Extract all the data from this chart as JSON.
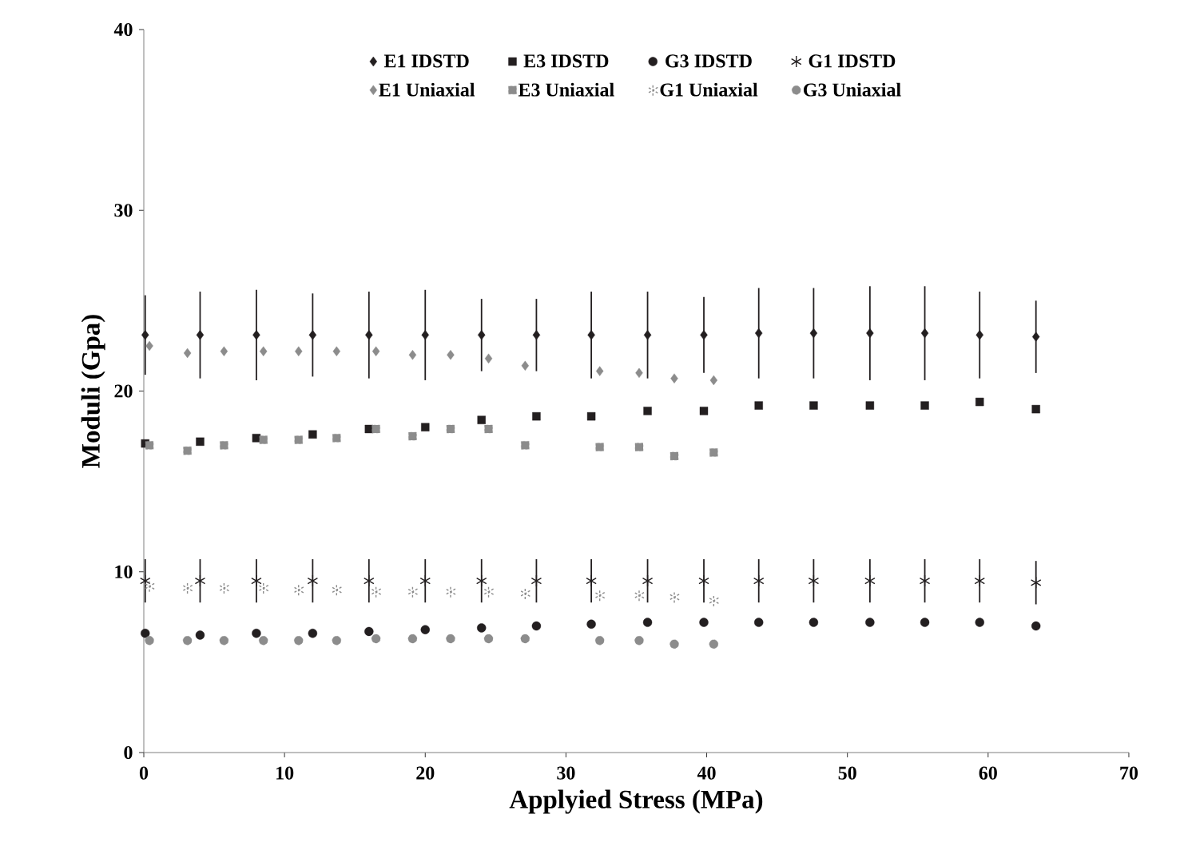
{
  "chart_data": {
    "type": "scatter",
    "xlabel": "Applyied Stress (MPa)",
    "ylabel": "Moduli (Gpa)",
    "xlim": [
      0,
      70
    ],
    "ylim": [
      0,
      40
    ],
    "xticks": [
      0,
      10,
      20,
      30,
      40,
      50,
      60,
      70
    ],
    "yticks": [
      0,
      10,
      20,
      30,
      40
    ],
    "grid": false,
    "legend": "top",
    "series": [
      {
        "name": "E1 IDSTD",
        "color": "#231f20",
        "marker": "diamond",
        "x": [
          0.1,
          4,
          8,
          12,
          16,
          20,
          24,
          27.9,
          31.8,
          35.8,
          39.8,
          43.7,
          47.6,
          51.6,
          55.5,
          59.4,
          63.4
        ],
        "values": [
          23.1,
          23.1,
          23.1,
          23.1,
          23.1,
          23.1,
          23.1,
          23.1,
          23.1,
          23.1,
          23.1,
          23.2,
          23.2,
          23.2,
          23.2,
          23.1,
          23.0
        ],
        "errors": [
          2.2,
          2.4,
          2.5,
          2.3,
          2.4,
          2.5,
          2.0,
          2.0,
          2.4,
          2.4,
          2.1,
          2.5,
          2.5,
          2.6,
          2.6,
          2.4,
          2.0
        ]
      },
      {
        "name": "E3 IDSTD",
        "color": "#231f20",
        "marker": "square",
        "x": [
          0.1,
          4,
          8,
          12,
          16,
          20,
          24,
          27.9,
          31.8,
          35.8,
          39.8,
          43.7,
          47.6,
          51.6,
          55.5,
          59.4,
          63.4
        ],
        "values": [
          17.1,
          17.2,
          17.4,
          17.6,
          17.9,
          18.0,
          18.4,
          18.6,
          18.6,
          18.9,
          18.9,
          19.2,
          19.2,
          19.2,
          19.2,
          19.4,
          19.0
        ]
      },
      {
        "name": "G3 IDSTD",
        "color": "#231f20",
        "marker": "circle",
        "x": [
          0.1,
          4,
          8,
          12,
          16,
          20,
          24,
          27.9,
          31.8,
          35.8,
          39.8,
          43.7,
          47.6,
          51.6,
          55.5,
          59.4,
          63.4
        ],
        "values": [
          6.6,
          6.5,
          6.6,
          6.6,
          6.7,
          6.8,
          6.9,
          7.0,
          7.1,
          7.2,
          7.2,
          7.2,
          7.2,
          7.2,
          7.2,
          7.2,
          7.0
        ]
      },
      {
        "name": "G1 IDSTD",
        "color": "#231f20",
        "marker": "cross",
        "x": [
          0.1,
          4,
          8,
          12,
          16,
          20,
          24,
          27.9,
          31.8,
          35.8,
          39.8,
          43.7,
          47.6,
          51.6,
          55.5,
          59.4,
          63.4
        ],
        "values": [
          9.5,
          9.5,
          9.5,
          9.5,
          9.5,
          9.5,
          9.5,
          9.5,
          9.5,
          9.5,
          9.5,
          9.5,
          9.5,
          9.5,
          9.5,
          9.5,
          9.4
        ],
        "errors": [
          1.2,
          1.2,
          1.2,
          1.2,
          1.2,
          1.2,
          1.2,
          1.2,
          1.2,
          1.2,
          1.2,
          1.2,
          1.2,
          1.2,
          1.2,
          1.2,
          1.2
        ]
      },
      {
        "name": "E1 Uniaxial",
        "color": "#8c8c8c",
        "marker": "diamond",
        "x": [
          0.4,
          3.1,
          5.7,
          8.5,
          11.0,
          13.7,
          16.5,
          19.1,
          21.8,
          24.5,
          27.1,
          32.4,
          35.2,
          37.7,
          40.5
        ],
        "values": [
          22.5,
          22.1,
          22.2,
          22.2,
          22.2,
          22.2,
          22.2,
          22.0,
          22.0,
          21.8,
          21.4,
          21.1,
          21.0,
          20.7,
          20.6
        ]
      },
      {
        "name": "E3 Uniaxial",
        "color": "#8c8c8c",
        "marker": "square",
        "x": [
          0.4,
          3.1,
          5.7,
          8.5,
          11.0,
          13.7,
          16.5,
          19.1,
          21.8,
          24.5,
          27.1,
          32.4,
          35.2,
          37.7,
          40.5
        ],
        "values": [
          17.0,
          16.7,
          17.0,
          17.3,
          17.3,
          17.4,
          17.9,
          17.5,
          17.9,
          17.9,
          17.0,
          16.9,
          16.9,
          16.4,
          16.6
        ]
      },
      {
        "name": "G1 Uniaxial",
        "color": "#8c8c8c",
        "marker": "cross",
        "x": [
          0.4,
          3.1,
          5.7,
          8.5,
          11.0,
          13.7,
          16.5,
          19.1,
          21.8,
          24.5,
          27.1,
          32.4,
          35.2,
          37.7,
          40.5
        ],
        "values": [
          9.2,
          9.1,
          9.1,
          9.1,
          9.0,
          9.0,
          8.9,
          8.9,
          8.9,
          8.9,
          8.8,
          8.7,
          8.7,
          8.6,
          8.4
        ]
      },
      {
        "name": "G3 Uniaxial",
        "color": "#8c8c8c",
        "marker": "circle",
        "x": [
          0.4,
          3.1,
          5.7,
          8.5,
          11.0,
          13.7,
          16.5,
          19.1,
          21.8,
          24.5,
          27.1,
          32.4,
          35.2,
          37.7,
          40.5
        ],
        "values": [
          6.2,
          6.2,
          6.2,
          6.2,
          6.2,
          6.2,
          6.3,
          6.3,
          6.3,
          6.3,
          6.3,
          6.2,
          6.2,
          6.0,
          6.0
        ]
      }
    ]
  }
}
